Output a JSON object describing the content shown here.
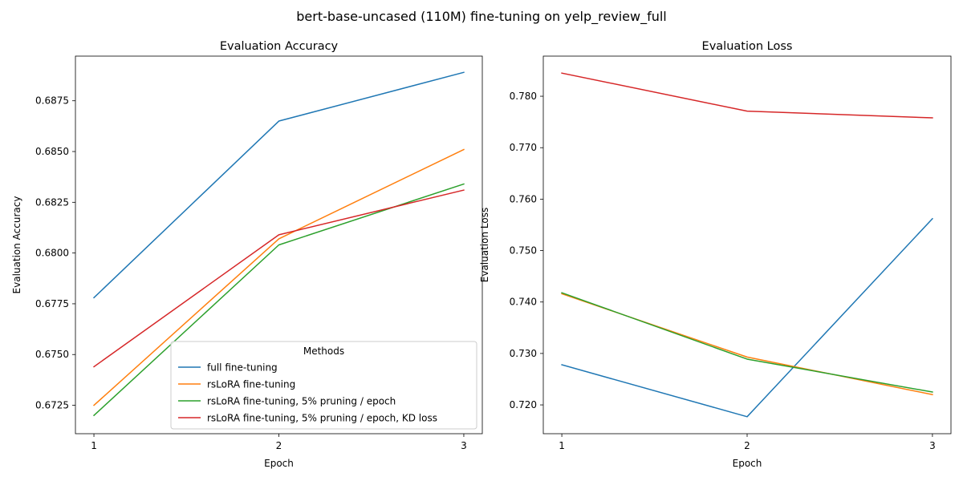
{
  "figure": {
    "suptitle": "bert-base-uncased (110M) fine-tuning on yelp_review_full"
  },
  "legend": {
    "title": "Methods",
    "placement": "lower-right of left panel"
  },
  "chart_data": [
    {
      "type": "line",
      "title": "Evaluation Accuracy",
      "xlabel": "Epoch",
      "ylabel": "Evaluation Accuracy",
      "x": [
        1,
        2,
        3
      ],
      "xticks": [
        "1",
        "2",
        "3"
      ],
      "xlim": [
        0.9,
        3.1
      ],
      "ylim": [
        0.6711,
        0.6897
      ],
      "yticks": [
        0.6725,
        0.675,
        0.6775,
        0.68,
        0.6825,
        0.685,
        0.6875
      ],
      "ytick_labels": [
        "0.6725",
        "0.6750",
        "0.6775",
        "0.6800",
        "0.6825",
        "0.6850",
        "0.6875"
      ],
      "grid": false,
      "legend": "lower right",
      "series": [
        {
          "name": "full fine-tuning",
          "color": "#1f77b4",
          "values": [
            0.6778,
            0.6865,
            0.6889
          ]
        },
        {
          "name": "rsLoRA fine-tuning",
          "color": "#ff7f0e",
          "values": [
            0.6725,
            0.6807,
            0.6851
          ]
        },
        {
          "name": "rsLoRA fine-tuning, 5% pruning / epoch",
          "color": "#2ca02c",
          "values": [
            0.672,
            0.6804,
            0.6834
          ]
        },
        {
          "name": "rsLoRA fine-tuning, 5% pruning / epoch, KD loss",
          "color": "#d62728",
          "values": [
            0.6744,
            0.6809,
            0.6831
          ]
        }
      ]
    },
    {
      "type": "line",
      "title": "Evaluation Loss",
      "xlabel": "Epoch",
      "ylabel": "Evaluation Loss",
      "x": [
        1,
        2,
        3
      ],
      "xticks": [
        "1",
        "2",
        "3"
      ],
      "xlim": [
        0.9,
        3.1
      ],
      "ylim": [
        0.7144,
        0.7878
      ],
      "yticks": [
        0.72,
        0.73,
        0.74,
        0.75,
        0.76,
        0.77,
        0.78
      ],
      "ytick_labels": [
        "0.720",
        "0.730",
        "0.740",
        "0.750",
        "0.760",
        "0.770",
        "0.780"
      ],
      "grid": false,
      "series": [
        {
          "name": "full fine-tuning",
          "color": "#1f77b4",
          "values": [
            0.7278,
            0.7177,
            0.7562
          ]
        },
        {
          "name": "rsLoRA fine-tuning",
          "color": "#ff7f0e",
          "values": [
            0.7416,
            0.7293,
            0.722
          ]
        },
        {
          "name": "rsLoRA fine-tuning, 5% pruning / epoch",
          "color": "#2ca02c",
          "values": [
            0.7418,
            0.7289,
            0.7225
          ]
        },
        {
          "name": "rsLoRA fine-tuning, 5% pruning / epoch, KD loss",
          "color": "#d62728",
          "values": [
            0.7845,
            0.7771,
            0.7758
          ]
        }
      ]
    }
  ]
}
